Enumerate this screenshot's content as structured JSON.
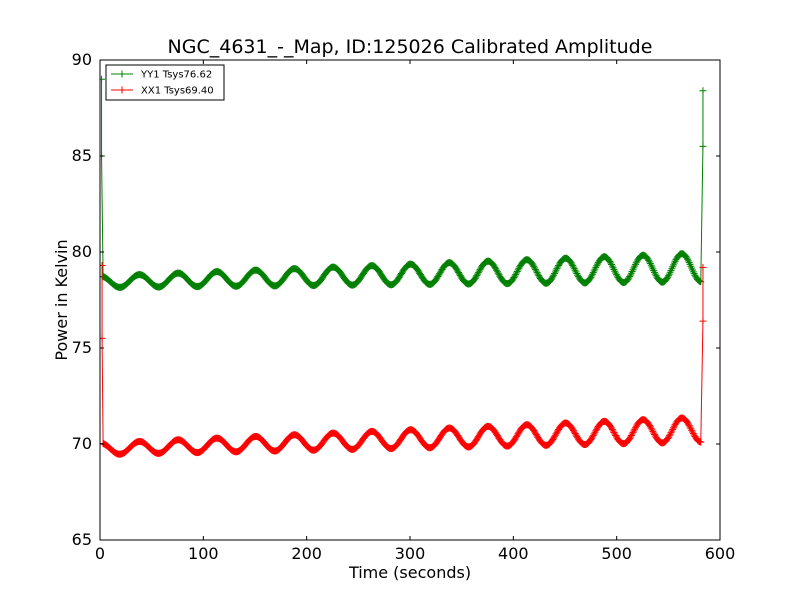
{
  "chart_data": {
    "type": "line",
    "title": "NGC_4631_-_Map, ID:125026 Calibrated Amplitude",
    "xlabel": "Time (seconds)",
    "ylabel": "Power in Kelvin",
    "xlim": [
      0,
      600
    ],
    "ylim": [
      65,
      90
    ],
    "xticks": [
      0,
      100,
      200,
      300,
      400,
      500,
      600
    ],
    "yticks": [
      65,
      70,
      75,
      80,
      85,
      90
    ],
    "grid": false,
    "legend_position": "top-left",
    "series": [
      {
        "name": "YY1 Tsys76.62",
        "color": "#008000",
        "marker": "+",
        "spike_start": {
          "x": 1.5,
          "peak": 89.0,
          "mid": 85.0
        },
        "spike_end": {
          "x": 583.5,
          "peak": 88.4,
          "mid": 85.5
        },
        "wave": {
          "x_start": 3,
          "x_end": 582,
          "period": 37.5,
          "phase_peak_x": 38,
          "base_start": 78.45,
          "base_end": 79.2,
          "amp_start": 0.3,
          "amp_end": 0.75
        }
      },
      {
        "name": "XX1 Tsys69.40",
        "color": "#ff0000",
        "marker": "+",
        "spike_start": {
          "x": 2.0,
          "peak": 79.3,
          "mid": 75.5
        },
        "spike_end": {
          "x": 583.5,
          "peak": 79.2,
          "mid": 76.4
        },
        "wave": {
          "x_start": 3,
          "x_end": 582,
          "period": 37.5,
          "phase_peak_x": 38,
          "base_start": 69.75,
          "base_end": 70.75,
          "amp_start": 0.3,
          "amp_end": 0.65
        }
      }
    ]
  }
}
